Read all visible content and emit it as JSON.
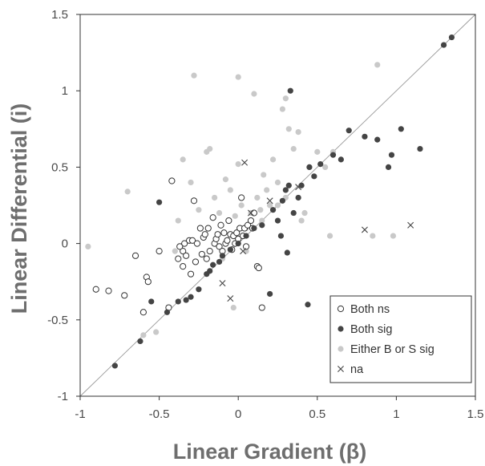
{
  "chart_data": {
    "type": "scatter",
    "title": "",
    "xlabel": "Linear Gradient (β)",
    "ylabel": "Linear Differential (i)",
    "xlim": [
      -1,
      1.5
    ],
    "ylim": [
      -1,
      1.5
    ],
    "xticks": [
      "-1",
      "-0.5",
      "0",
      "0.5",
      "1",
      "1.5"
    ],
    "yticks": [
      "-1",
      "-0.5",
      "0",
      "0.5",
      "1",
      "1.5"
    ],
    "grid": false,
    "legend_position": "bottom-right",
    "reference_line": {
      "slope": 1,
      "intercept": 0,
      "color": "#9a9a9a"
    },
    "series": [
      {
        "name": "Both ns",
        "marker": "open-circle",
        "color": "#333333",
        "points": [
          [
            -0.9,
            -0.3
          ],
          [
            -0.82,
            -0.31
          ],
          [
            -0.72,
            -0.34
          ],
          [
            -0.65,
            -0.08
          ],
          [
            -0.6,
            -0.45
          ],
          [
            -0.58,
            -0.22
          ],
          [
            -0.57,
            -0.25
          ],
          [
            -0.5,
            -0.05
          ],
          [
            -0.42,
            0.41
          ],
          [
            -0.38,
            -0.1
          ],
          [
            -0.35,
            -0.15
          ],
          [
            -0.35,
            -0.05
          ],
          [
            -0.34,
            0.0
          ],
          [
            -0.33,
            -0.08
          ],
          [
            -0.31,
            0.02
          ],
          [
            -0.3,
            -0.2
          ],
          [
            -0.29,
            0.02
          ],
          [
            -0.28,
            0.28
          ],
          [
            -0.27,
            -0.12
          ],
          [
            -0.26,
            0.0
          ],
          [
            -0.24,
            0.1
          ],
          [
            -0.22,
            0.04
          ],
          [
            -0.21,
            0.06
          ],
          [
            -0.2,
            -0.1
          ],
          [
            -0.18,
            -0.05
          ],
          [
            -0.16,
            0.17
          ],
          [
            -0.15,
            0.0
          ],
          [
            -0.14,
            0.03
          ],
          [
            -0.12,
            -0.02
          ],
          [
            -0.11,
            0.12
          ],
          [
            -0.1,
            -0.05
          ],
          [
            -0.09,
            0.07
          ],
          [
            -0.08,
            0.0
          ],
          [
            -0.07,
            0.02
          ],
          [
            -0.06,
            0.15
          ],
          [
            -0.05,
            0.06
          ],
          [
            -0.04,
            -0.04
          ],
          [
            -0.03,
            0.05
          ],
          [
            -0.02,
            0.0
          ],
          [
            -0.01,
            0.07
          ],
          [
            0.0,
            0.03
          ],
          [
            0.01,
            0.1
          ],
          [
            0.02,
            0.3
          ],
          [
            0.03,
            0.05
          ],
          [
            0.04,
            0.1
          ],
          [
            0.05,
            -0.02
          ],
          [
            0.06,
            0.12
          ],
          [
            0.08,
            0.15
          ],
          [
            0.1,
            0.2
          ],
          [
            0.12,
            -0.15
          ],
          [
            0.13,
            -0.16
          ],
          [
            0.15,
            -0.42
          ],
          [
            -0.44,
            -0.42
          ],
          [
            -0.19,
            0.1
          ],
          [
            -0.13,
            0.06
          ],
          [
            -0.23,
            -0.07
          ],
          [
            0.09,
            0.1
          ],
          [
            -0.37,
            -0.02
          ]
        ]
      },
      {
        "name": "Both sig",
        "marker": "filled-circle",
        "color": "#444444",
        "points": [
          [
            -0.78,
            -0.8
          ],
          [
            -0.62,
            -0.64
          ],
          [
            -0.55,
            -0.38
          ],
          [
            -0.5,
            0.27
          ],
          [
            -0.45,
            -0.45
          ],
          [
            -0.38,
            -0.38
          ],
          [
            -0.33,
            -0.37
          ],
          [
            -0.3,
            -0.35
          ],
          [
            -0.25,
            -0.3
          ],
          [
            -0.2,
            -0.2
          ],
          [
            -0.18,
            -0.18
          ],
          [
            -0.16,
            -0.14
          ],
          [
            -0.12,
            -0.12
          ],
          [
            -0.1,
            -0.08
          ],
          [
            -0.05,
            -0.04
          ],
          [
            0.0,
            0.0
          ],
          [
            0.05,
            0.05
          ],
          [
            0.1,
            0.1
          ],
          [
            0.15,
            0.12
          ],
          [
            0.2,
            -0.33
          ],
          [
            0.22,
            0.22
          ],
          [
            0.25,
            0.15
          ],
          [
            0.28,
            0.28
          ],
          [
            0.3,
            0.35
          ],
          [
            0.32,
            0.38
          ],
          [
            0.33,
            1.0
          ],
          [
            0.35,
            0.2
          ],
          [
            0.38,
            0.3
          ],
          [
            0.4,
            0.38
          ],
          [
            0.44,
            -0.4
          ],
          [
            0.45,
            0.5
          ],
          [
            0.48,
            0.44
          ],
          [
            0.52,
            0.52
          ],
          [
            0.6,
            0.58
          ],
          [
            0.65,
            0.55
          ],
          [
            0.7,
            0.74
          ],
          [
            0.8,
            0.7
          ],
          [
            0.88,
            0.68
          ],
          [
            0.95,
            0.5
          ],
          [
            0.97,
            0.58
          ],
          [
            1.03,
            0.75
          ],
          [
            1.15,
            0.62
          ],
          [
            1.3,
            1.3
          ],
          [
            1.35,
            1.35
          ],
          [
            0.27,
            0.05
          ],
          [
            0.31,
            -0.06
          ]
        ]
      },
      {
        "name": "Either B or S sig",
        "marker": "filled-circle",
        "color": "#c9c9c9",
        "points": [
          [
            -0.95,
            -0.02
          ],
          [
            -0.7,
            0.34
          ],
          [
            -0.6,
            -0.6
          ],
          [
            -0.52,
            -0.58
          ],
          [
            -0.4,
            -0.05
          ],
          [
            -0.38,
            0.15
          ],
          [
            -0.35,
            0.55
          ],
          [
            -0.3,
            0.4
          ],
          [
            -0.25,
            0.22
          ],
          [
            -0.18,
            0.62
          ],
          [
            -0.15,
            0.3
          ],
          [
            -0.12,
            0.2
          ],
          [
            -0.08,
            0.42
          ],
          [
            -0.05,
            0.35
          ],
          [
            -0.03,
            -0.42
          ],
          [
            -0.02,
            0.18
          ],
          [
            0.0,
            0.52
          ],
          [
            0.02,
            0.25
          ],
          [
            0.05,
            0.1
          ],
          [
            0.08,
            0.2
          ],
          [
            0.1,
            0.98
          ],
          [
            0.12,
            0.3
          ],
          [
            0.14,
            0.22
          ],
          [
            0.16,
            0.45
          ],
          [
            0.18,
            0.35
          ],
          [
            0.2,
            0.25
          ],
          [
            0.22,
            0.55
          ],
          [
            0.25,
            0.4
          ],
          [
            0.28,
            0.88
          ],
          [
            0.3,
            0.3
          ],
          [
            0.32,
            0.75
          ],
          [
            0.35,
            0.62
          ],
          [
            0.38,
            0.73
          ],
          [
            0.4,
            0.15
          ],
          [
            0.42,
            0.2
          ],
          [
            0.45,
            0.5
          ],
          [
            0.5,
            0.6
          ],
          [
            0.55,
            0.5
          ],
          [
            0.58,
            0.05
          ],
          [
            0.6,
            0.6
          ],
          [
            0.85,
            0.05
          ],
          [
            0.88,
            1.17
          ],
          [
            0.98,
            0.05
          ],
          [
            0.0,
            1.09
          ],
          [
            -0.28,
            1.1
          ],
          [
            -0.2,
            0.6
          ],
          [
            0.3,
            0.95
          ],
          [
            0.05,
            -0.05
          ],
          [
            -0.1,
            -0.1
          ],
          [
            0.15,
            0.15
          ],
          [
            0.25,
            0.25
          ]
        ]
      },
      {
        "name": "na",
        "marker": "x",
        "color": "#444444",
        "points": [
          [
            0.04,
            0.53
          ],
          [
            -0.1,
            -0.26
          ],
          [
            -0.05,
            -0.36
          ],
          [
            0.08,
            0.2
          ],
          [
            0.2,
            0.28
          ],
          [
            0.38,
            0.37
          ],
          [
            0.03,
            -0.05
          ],
          [
            0.8,
            0.09
          ],
          [
            1.09,
            0.12
          ]
        ]
      }
    ]
  }
}
